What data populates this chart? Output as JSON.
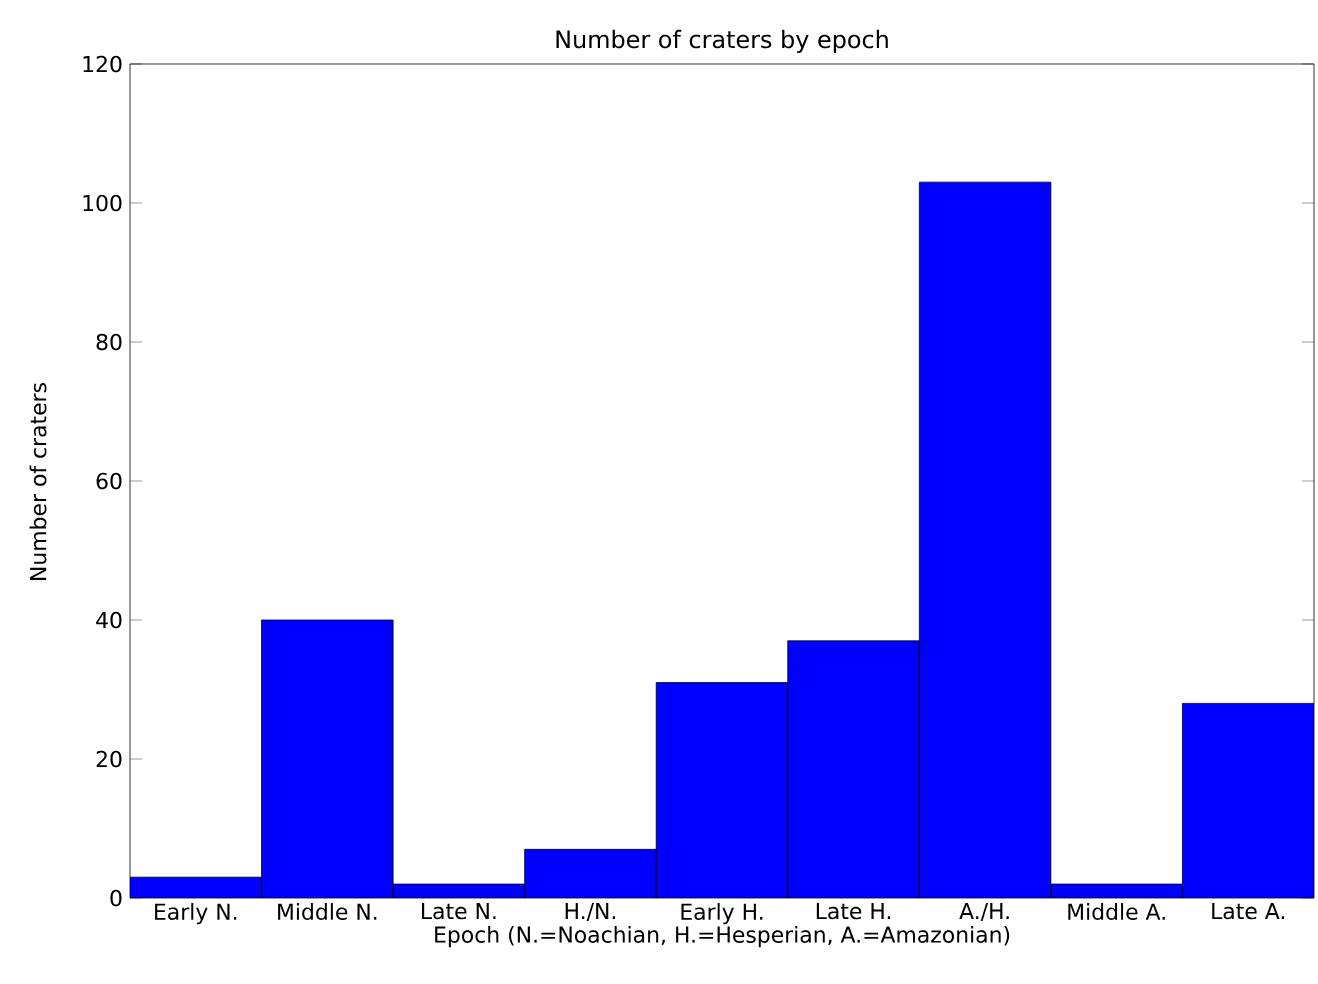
{
  "chart_data": {
    "type": "bar",
    "title": "Number of craters by epoch",
    "xlabel": "Epoch (N.=Noachian, H.=Hesperian, A.=Amazonian)",
    "ylabel": "Number of craters",
    "categories": [
      "Early N.",
      "Middle N.",
      "Late N.",
      "H./N.",
      "Early H.",
      "Late H.",
      "A./H.",
      "Middle A.",
      "Late A."
    ],
    "values": [
      3,
      40,
      2,
      7,
      31,
      37,
      103,
      2,
      28
    ],
    "color": "#0000ff",
    "ylim": [
      0,
      120
    ],
    "yticks": [
      0,
      20,
      40,
      60,
      80,
      100,
      120
    ]
  }
}
